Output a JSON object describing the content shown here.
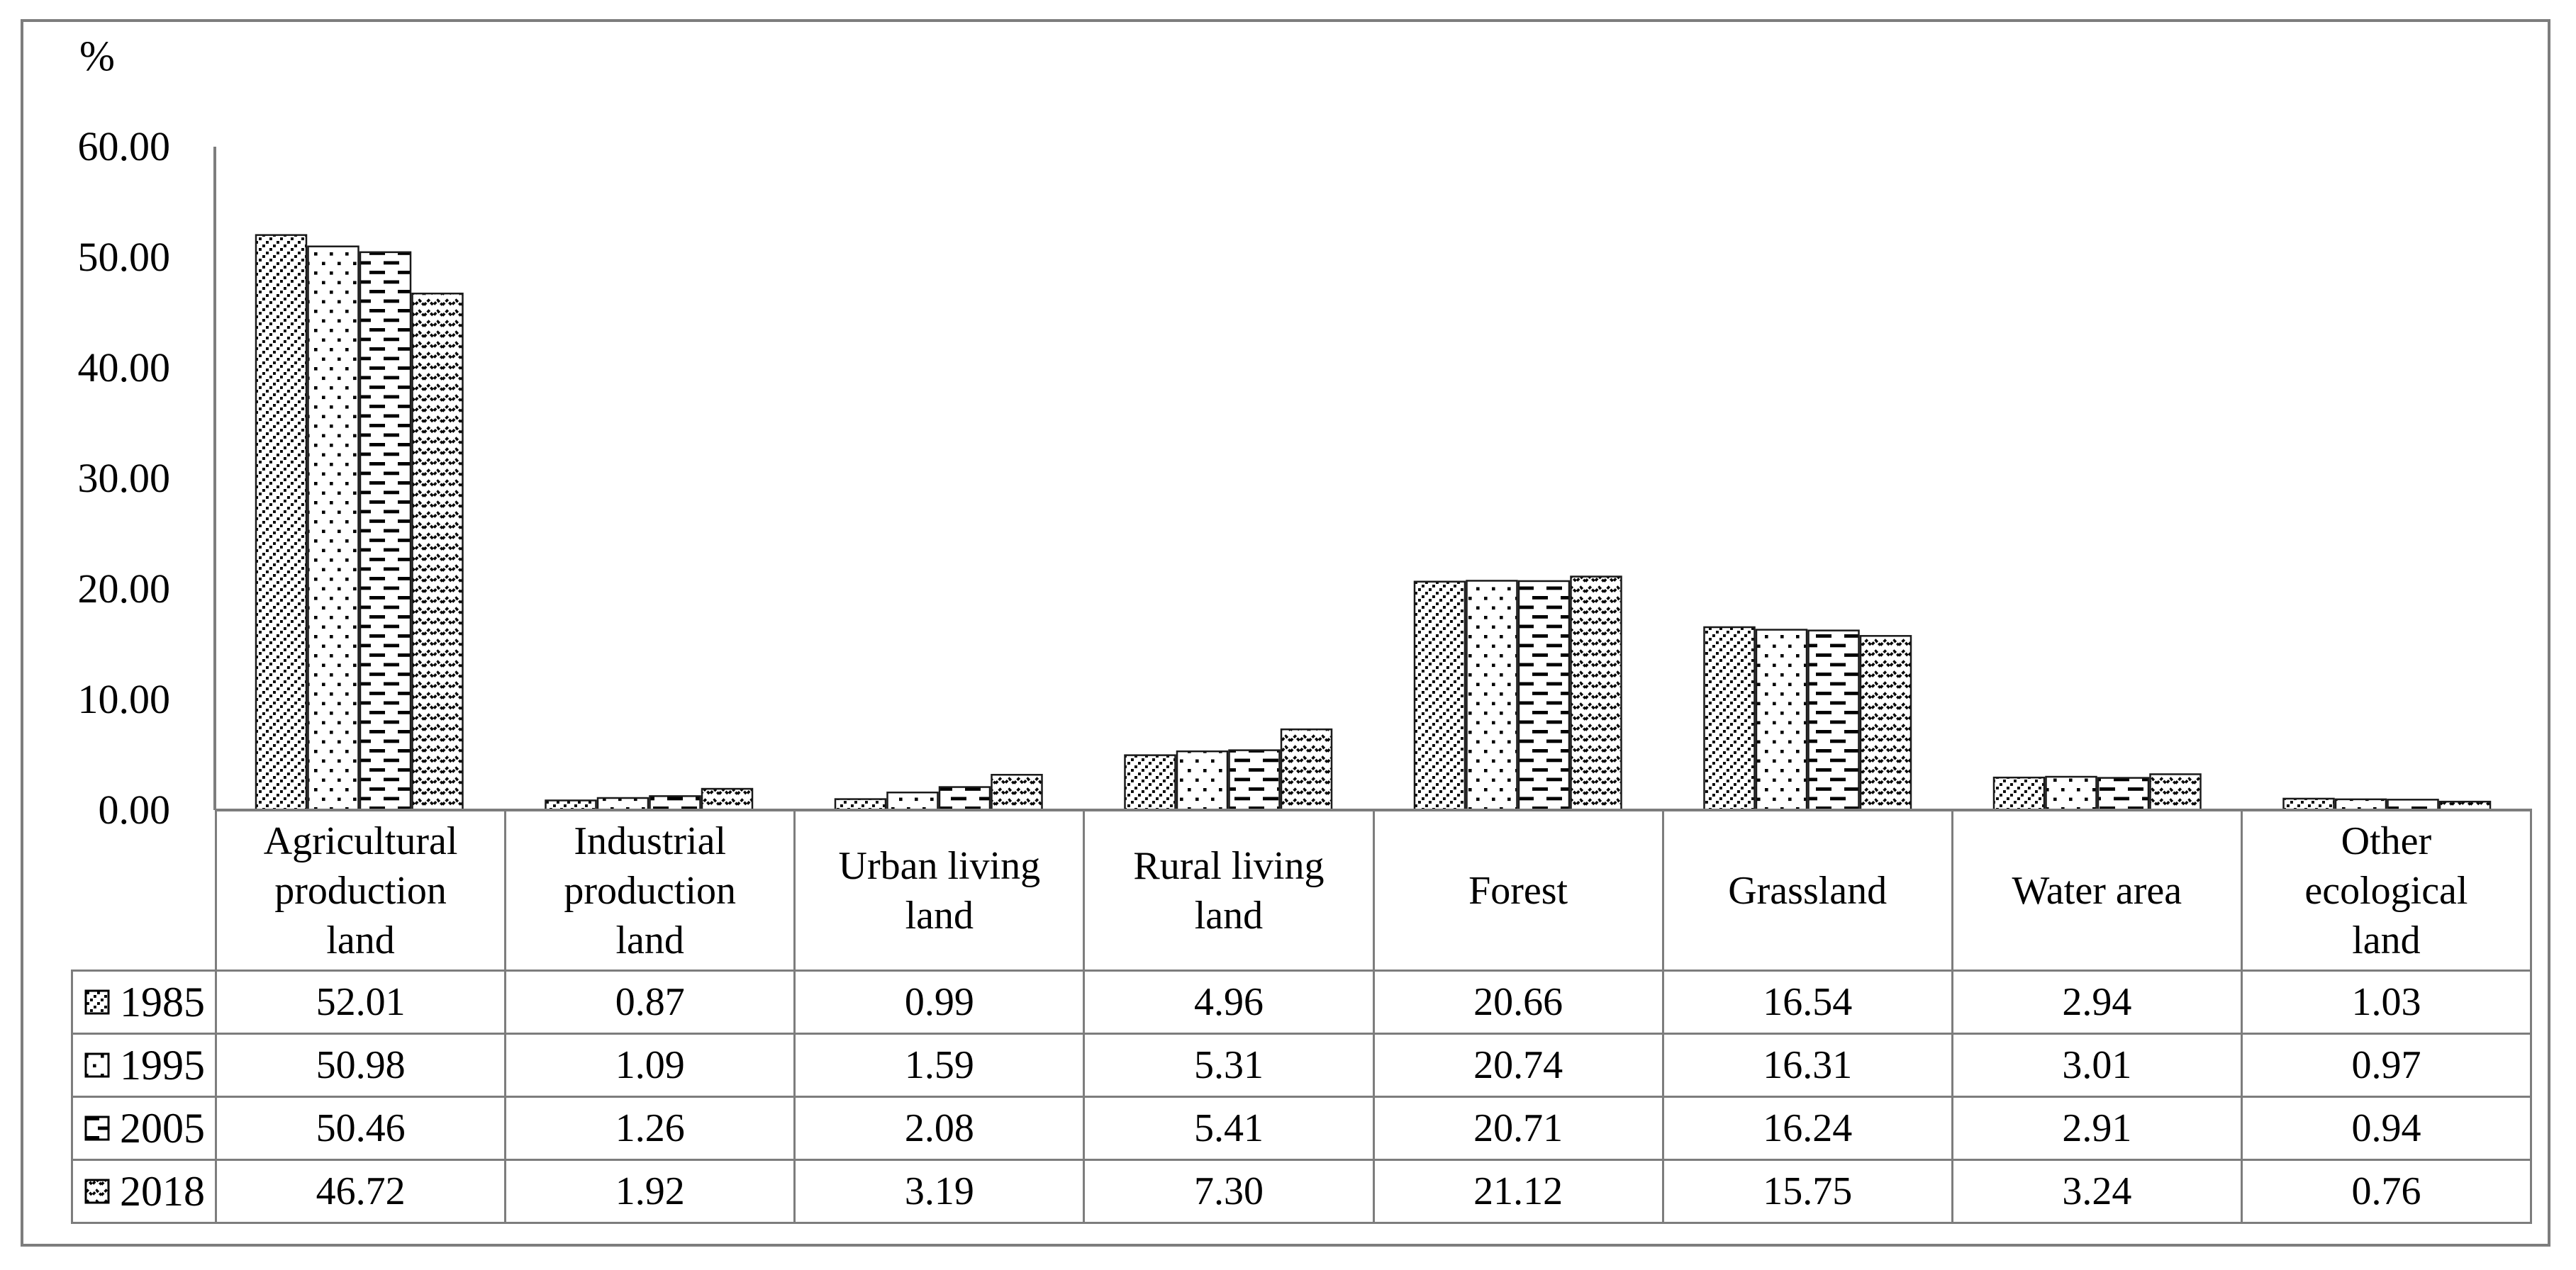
{
  "figure": {
    "background": "#ffffff",
    "border_color": "#7d7d7d"
  },
  "colors": {
    "axis_line": "#7d7d7d",
    "table_grid": "#7d7d7d",
    "bar_border": "#1a1a1a",
    "pattern_foreground": "#000000",
    "bar_fill": "#ffffff",
    "text": "#000000"
  },
  "chart_data": {
    "type": "bar",
    "title": "",
    "y_unit_label": "%",
    "ylabel": "%",
    "xlabel": "",
    "ylim": [
      0,
      60
    ],
    "ytick_interval": 10,
    "ytick_labels": [
      "0.00",
      "10.00",
      "20.00",
      "30.00",
      "40.00",
      "50.00",
      "60.00"
    ],
    "grid": false,
    "legend_position": "table-left-column",
    "value_format": "2 decimal places",
    "categories": [
      "Agricultural production land",
      "Industrial production land",
      "Urban living land",
      "Rural living land",
      "Forest",
      "Grassland",
      "Water area",
      "Other ecological land"
    ],
    "category_lines": [
      [
        "Agricultural",
        "production",
        "land"
      ],
      [
        "Industrial",
        "production",
        "land"
      ],
      [
        "Urban living",
        "land"
      ],
      [
        "Rural living",
        "land"
      ],
      [
        "Forest"
      ],
      [
        "Grassland"
      ],
      [
        "Water area"
      ],
      [
        "Other",
        "ecological",
        "land"
      ]
    ],
    "series": [
      {
        "name": "1985",
        "pattern": "diagonal-dots",
        "values": [
          52.01,
          0.87,
          0.99,
          4.96,
          20.66,
          16.54,
          2.94,
          1.03
        ]
      },
      {
        "name": "1995",
        "pattern": "dot-grid",
        "values": [
          50.98,
          1.09,
          1.59,
          5.31,
          20.74,
          16.31,
          3.01,
          0.97
        ]
      },
      {
        "name": "2005",
        "pattern": "horizontal-dashes",
        "values": [
          50.46,
          1.26,
          2.08,
          5.41,
          20.71,
          16.24,
          2.91,
          0.94
        ]
      },
      {
        "name": "2018",
        "pattern": "zigzag-waves",
        "values": [
          46.72,
          1.92,
          3.19,
          7.3,
          21.12,
          15.75,
          3.24,
          0.76
        ]
      }
    ]
  }
}
